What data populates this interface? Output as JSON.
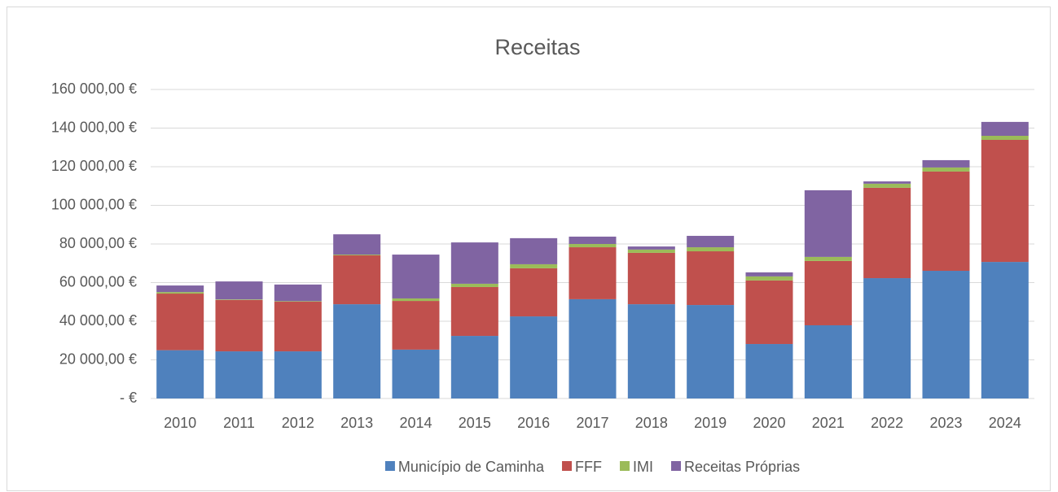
{
  "chart_data": {
    "type": "bar",
    "stacked": true,
    "title": "Receitas",
    "categories": [
      "2010",
      "2011",
      "2012",
      "2013",
      "2014",
      "2015",
      "2016",
      "2017",
      "2018",
      "2019",
      "2020",
      "2021",
      "2022",
      "2023",
      "2024"
    ],
    "series": [
      {
        "name": "Município de Caminha",
        "color": "#4f81bd",
        "values": [
          25000,
          24400,
          24400,
          48800,
          25300,
          32400,
          42500,
          51400,
          48800,
          48400,
          28200,
          37900,
          62300,
          66100,
          70700
        ]
      },
      {
        "name": "FFF",
        "color": "#c0504d",
        "values": [
          29300,
          26600,
          25700,
          25300,
          25200,
          25300,
          24900,
          26900,
          26600,
          27800,
          32900,
          33300,
          46800,
          51400,
          63200
        ]
      },
      {
        "name": "IMI",
        "color": "#9bbb59",
        "values": [
          800,
          300,
          300,
          400,
          1300,
          1700,
          2100,
          1700,
          1700,
          2100,
          2100,
          2100,
          2100,
          2100,
          2100
        ]
      },
      {
        "name": "Receitas Próprias",
        "color": "#8064a2",
        "values": [
          3400,
          9300,
          8600,
          10500,
          22700,
          21400,
          13500,
          3800,
          1600,
          5900,
          2100,
          34500,
          1200,
          3800,
          7200
        ]
      }
    ],
    "ylim": [
      0,
      160000
    ],
    "yticks": [
      {
        "value": 0,
        "label": "-   €"
      },
      {
        "value": 20000,
        "label": "20 000,00 €"
      },
      {
        "value": 40000,
        "label": "40 000,00 €"
      },
      {
        "value": 60000,
        "label": "60 000,00 €"
      },
      {
        "value": 80000,
        "label": "80 000,00 €"
      },
      {
        "value": 100000,
        "label": "100 000,00 €"
      },
      {
        "value": 120000,
        "label": "120 000,00 €"
      },
      {
        "value": 140000,
        "label": "140 000,00 €"
      },
      {
        "value": 160000,
        "label": "160 000,00 €"
      }
    ],
    "grid": true,
    "legend": "bottom"
  }
}
